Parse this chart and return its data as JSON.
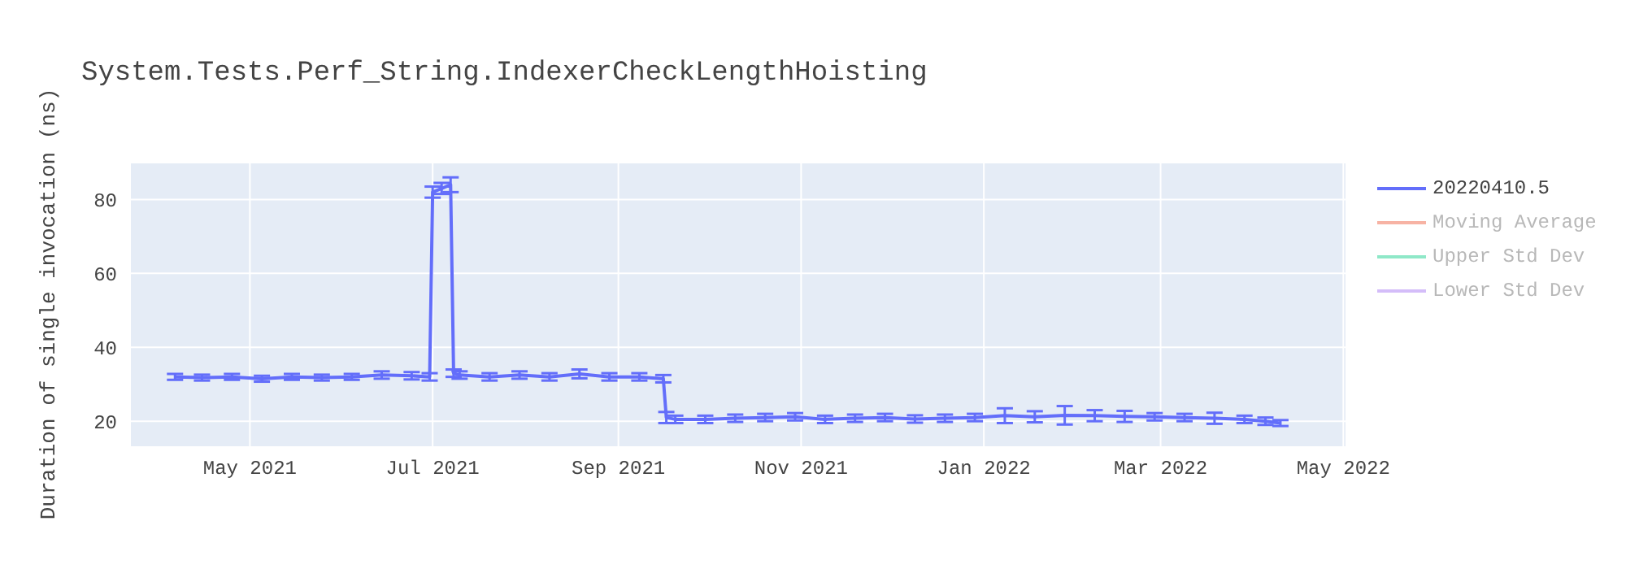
{
  "chart_data": {
    "type": "line",
    "title": "System.Tests.Perf_String.IndexerCheckLengthHoisting",
    "ylabel": "Duration of single invocation (ns)",
    "x": [
      "2021-04-06",
      "2021-04-15",
      "2021-04-25",
      "2021-05-05",
      "2021-05-15",
      "2021-05-25",
      "2021-06-04",
      "2021-06-14",
      "2021-06-24",
      "2021-06-30",
      "2021-07-01",
      "2021-07-04",
      "2021-07-07",
      "2021-07-08",
      "2021-07-10",
      "2021-07-20",
      "2021-07-30",
      "2021-08-09",
      "2021-08-19",
      "2021-08-29",
      "2021-09-08",
      "2021-09-16",
      "2021-09-17",
      "2021-09-20",
      "2021-09-30",
      "2021-10-10",
      "2021-10-20",
      "2021-10-30",
      "2021-11-09",
      "2021-11-19",
      "2021-11-29",
      "2021-12-09",
      "2021-12-19",
      "2021-12-29",
      "2022-01-08",
      "2022-01-18",
      "2022-01-28",
      "2022-02-07",
      "2022-02-17",
      "2022-02-27",
      "2022-03-09",
      "2022-03-19",
      "2022-03-29",
      "2022-04-05",
      "2022-04-10"
    ],
    "series": [
      {
        "name": "20220410.5",
        "color": "#636efa",
        "values": [
          32,
          31.8,
          32,
          31.5,
          32,
          31.8,
          32,
          32.5,
          32.3,
          32,
          82,
          83,
          84,
          33,
          32.5,
          32,
          32.5,
          32,
          32.8,
          32,
          32,
          31.5,
          21,
          20.5,
          20.5,
          20.8,
          21,
          21.2,
          20.5,
          20.8,
          21,
          20.6,
          20.8,
          21,
          21.5,
          21.2,
          21.6,
          21.5,
          21.3,
          21.2,
          21,
          20.8,
          20.5,
          20,
          19.5
        ],
        "errors": [
          0.8,
          0.8,
          0.8,
          0.8,
          0.8,
          0.8,
          0.8,
          1,
          1,
          1,
          1.5,
          1.5,
          2,
          1,
          1,
          1,
          1,
          1,
          1.2,
          1,
          1,
          1,
          1.5,
          1,
          1,
          1,
          1,
          1,
          1,
          1,
          1,
          1,
          1,
          1,
          2,
          1.5,
          2.5,
          1.5,
          1.5,
          1,
          1,
          1.5,
          1,
          1,
          0.8
        ]
      },
      {
        "name": "Moving Average",
        "color": "#f7b3a4",
        "values": [
          null,
          null,
          null,
          null,
          null,
          null,
          null,
          null,
          null,
          null,
          null,
          null,
          null,
          null,
          null,
          null,
          null,
          null,
          null,
          null,
          null,
          null,
          null,
          null,
          null,
          null,
          null,
          null,
          null,
          null,
          null,
          null,
          null,
          null,
          null,
          null,
          null,
          null,
          null,
          null,
          null,
          null,
          null,
          null,
          null
        ]
      },
      {
        "name": "Upper Std Dev",
        "color": "#8fe8c8",
        "values": [
          null,
          null,
          null,
          null,
          null,
          null,
          null,
          null,
          null,
          null,
          null,
          null,
          null,
          null,
          null,
          null,
          null,
          null,
          null,
          null,
          null,
          null,
          null,
          null,
          null,
          null,
          null,
          null,
          null,
          null,
          null,
          null,
          null,
          null,
          null,
          null,
          null,
          null,
          null,
          null,
          null,
          null,
          null,
          null,
          null
        ]
      },
      {
        "name": "Lower Std Dev",
        "color": "#d4bdf9",
        "values": [
          null,
          null,
          null,
          null,
          null,
          null,
          null,
          null,
          null,
          null,
          null,
          null,
          null,
          null,
          null,
          null,
          null,
          null,
          null,
          null,
          null,
          null,
          null,
          null,
          null,
          null,
          null,
          null,
          null,
          null,
          null,
          null,
          null,
          null,
          null,
          null,
          null,
          null,
          null,
          null,
          null,
          null,
          null,
          null,
          null
        ]
      }
    ],
    "xlim": [
      "2021-03-22",
      "2022-05-02"
    ],
    "xticks": [
      {
        "value": "2021-05-01",
        "label": "May 2021"
      },
      {
        "value": "2021-07-01",
        "label": "Jul 2021"
      },
      {
        "value": "2021-09-01",
        "label": "Sep 2021"
      },
      {
        "value": "2021-11-01",
        "label": "Nov 2021"
      },
      {
        "value": "2022-01-01",
        "label": "Jan 2022"
      },
      {
        "value": "2022-03-01",
        "label": "Mar 2022"
      },
      {
        "value": "2022-05-01",
        "label": "May 2022"
      }
    ],
    "ylim": [
      13,
      90
    ],
    "yticks": [
      20,
      40,
      60,
      80
    ],
    "grid": true,
    "legend": "right",
    "marker": "none",
    "line_style": "solid"
  }
}
